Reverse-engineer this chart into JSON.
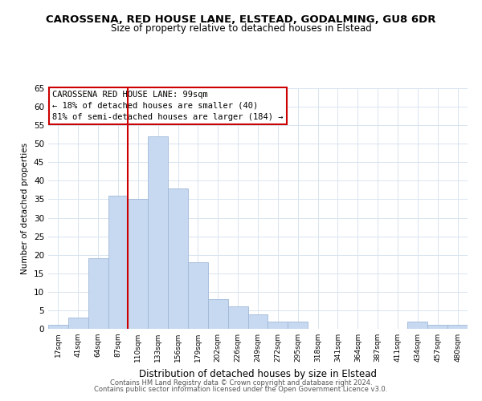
{
  "title": "CAROSSENA, RED HOUSE LANE, ELSTEAD, GODALMING, GU8 6DR",
  "subtitle": "Size of property relative to detached houses in Elstead",
  "xlabel": "Distribution of detached houses by size in Elstead",
  "ylabel": "Number of detached properties",
  "bar_labels": [
    "17sqm",
    "41sqm",
    "64sqm",
    "87sqm",
    "110sqm",
    "133sqm",
    "156sqm",
    "179sqm",
    "202sqm",
    "226sqm",
    "249sqm",
    "272sqm",
    "295sqm",
    "318sqm",
    "341sqm",
    "364sqm",
    "387sqm",
    "411sqm",
    "434sqm",
    "457sqm",
    "480sqm"
  ],
  "bar_values": [
    1,
    3,
    19,
    36,
    35,
    52,
    38,
    18,
    8,
    6,
    4,
    2,
    2,
    0,
    0,
    0,
    0,
    0,
    2,
    1,
    1
  ],
  "bar_color": "#c6d9f0",
  "bar_edge_color": "#a0b8d8",
  "ylim": [
    0,
    65
  ],
  "yticks": [
    0,
    5,
    10,
    15,
    20,
    25,
    30,
    35,
    40,
    45,
    50,
    55,
    60,
    65
  ],
  "vline_x_index": 4,
  "vline_color": "#cc0000",
  "annotation_title": "CAROSSENA RED HOUSE LANE: 99sqm",
  "annotation_line1": "← 18% of detached houses are smaller (40)",
  "annotation_line2": "81% of semi-detached houses are larger (184) →",
  "annotation_box_color": "#ffffff",
  "annotation_box_edge": "#cc0000",
  "footer1": "Contains HM Land Registry data © Crown copyright and database right 2024.",
  "footer2": "Contains public sector information licensed under the Open Government Licence v3.0.",
  "bg_color": "#ffffff",
  "grid_color": "#d8e4f0"
}
